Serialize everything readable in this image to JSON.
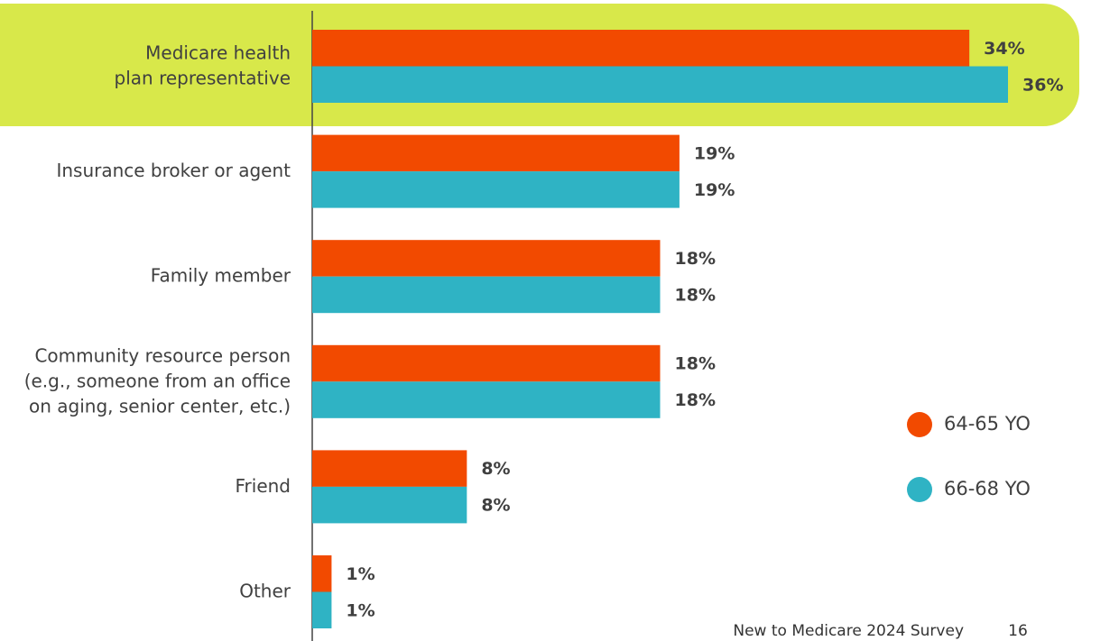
{
  "chart_data": {
    "type": "bar",
    "orientation": "horizontal",
    "categories": [
      "Medicare health\nplan representative",
      "Insurance broker or agent",
      "Family member",
      "Community resource person\n(e.g., someone from an office\non aging, senior center, etc.)",
      "Friend",
      "Other"
    ],
    "series": [
      {
        "name": "64-65 YO",
        "color": "#f24a00",
        "values": [
          34,
          19,
          18,
          18,
          8,
          1
        ],
        "value_labels": [
          "34%",
          "19%",
          "18%",
          "18%",
          "8%",
          "1%"
        ]
      },
      {
        "name": "66-68 YO",
        "color": "#2fb3c4",
        "values": [
          36,
          19,
          18,
          18,
          8,
          1
        ],
        "value_labels": [
          "36%",
          "19%",
          "18%",
          "18%",
          "8%",
          "1%"
        ]
      }
    ],
    "legend": "right",
    "footer": "New to Medicare 2024 Survey",
    "page_number": "16"
  }
}
